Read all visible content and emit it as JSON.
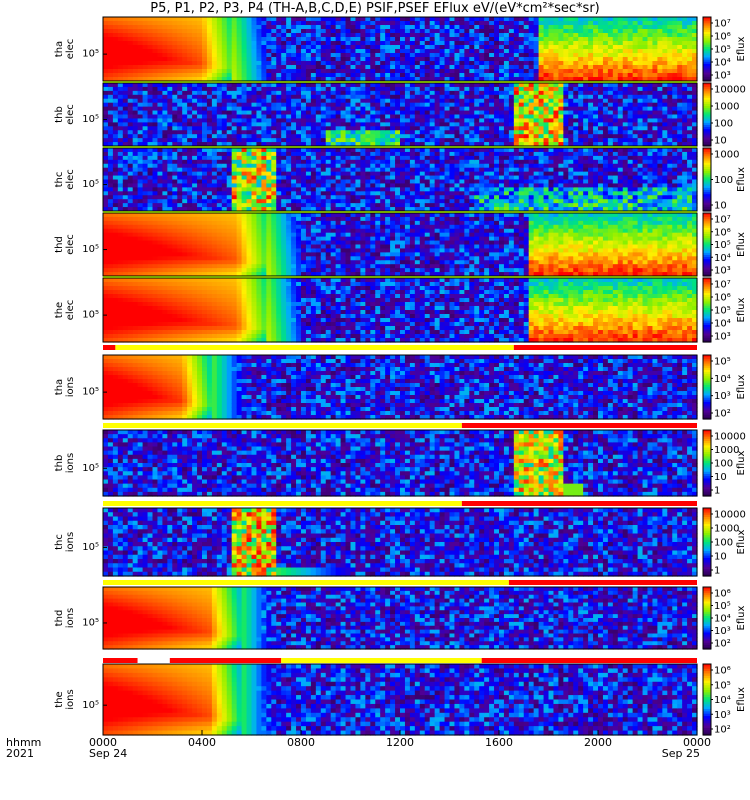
{
  "title": "P5, P1, P2, P3, P4 (TH-A,B,C,D,E) PSIF,PSEF EFlux eV/(eV*cm²*sec*sr)",
  "x_axis": {
    "row1_label": "hhmm",
    "row2_label": "2021",
    "ticks": [
      "0000",
      "0400",
      "0800",
      "1200",
      "1600",
      "2000",
      "0000"
    ],
    "date_start": "Sep 24",
    "date_end": "Sep 25"
  },
  "chart_data": {
    "type": "heatmap",
    "x_unit": "hours (UT)",
    "xlim": [
      0,
      24
    ],
    "panels": [
      {
        "probe": "tha",
        "species": "elec",
        "ylabel": [
          "tha",
          "elec"
        ],
        "ytick": "10⁵",
        "cbar": {
          "label": "Eflux",
          "ticks": [
            "10⁷",
            "10⁶",
            "10⁵",
            "10⁴",
            "10³"
          ],
          "log_range": [
            2.7,
            7
          ]
        }
      },
      {
        "probe": "thb",
        "species": "elec",
        "ylabel": [
          "thb",
          "elec"
        ],
        "ytick": "10⁵",
        "cbar": {
          "label": "",
          "ticks": [
            "10000",
            "1000",
            "100",
            "10"
          ],
          "log_range": [
            0.5,
            4.5
          ]
        }
      },
      {
        "probe": "thc",
        "species": "elec",
        "ylabel": [
          "thc",
          "elec"
        ],
        "ytick": "10⁵",
        "cbar": {
          "label": "Eflux",
          "ticks": [
            "1000",
            "100",
            "10"
          ],
          "log_range": [
            0.6,
            3.5
          ]
        }
      },
      {
        "probe": "thd",
        "species": "elec",
        "ylabel": [
          "thd",
          "elec"
        ],
        "ytick": "10⁵",
        "cbar": {
          "label": "Eflux",
          "ticks": [
            "10⁷",
            "10⁶",
            "10⁵",
            "10⁴",
            "10³"
          ],
          "log_range": [
            2.7,
            7
          ]
        }
      },
      {
        "probe": "the",
        "species": "elec",
        "ylabel": [
          "the",
          "elec"
        ],
        "ytick": "10⁵",
        "cbar": {
          "label": "Eflux",
          "ticks": [
            "10⁷",
            "10⁶",
            "10⁵",
            "10⁴",
            "10³"
          ],
          "log_range": [
            2.7,
            7
          ]
        }
      },
      {
        "probe": "tha",
        "species": "ions",
        "ylabel": [
          "tha",
          "ions"
        ],
        "ytick": "10⁵",
        "cbar": {
          "label": "Eflux",
          "ticks": [
            "10⁵",
            "10⁴",
            "10³",
            "10²"
          ],
          "log_range": [
            1.8,
            5.2
          ]
        }
      },
      {
        "probe": "thb",
        "species": "ions",
        "ylabel": [
          "thb",
          "ions"
        ],
        "ytick": "10⁵",
        "cbar": {
          "label": "Eflux",
          "ticks": [
            "10000",
            "1000",
            "100",
            "10",
            "1"
          ],
          "log_range": [
            0,
            4.5
          ]
        }
      },
      {
        "probe": "thc",
        "species": "ions",
        "ylabel": [
          "thc",
          "ions"
        ],
        "ytick": "10⁵",
        "cbar": {
          "label": "Eflux",
          "ticks": [
            "10000",
            "1000",
            "100",
            "10",
            "1"
          ],
          "log_range": [
            0,
            4.5
          ]
        }
      },
      {
        "probe": "thd",
        "species": "ions",
        "ylabel": [
          "thd",
          "ions"
        ],
        "ytick": "10⁵",
        "cbar": {
          "label": "Eflux",
          "ticks": [
            "10⁶",
            "10⁵",
            "10⁴",
            "10³",
            "10²"
          ],
          "log_range": [
            1.8,
            6.3
          ]
        }
      },
      {
        "probe": "the",
        "species": "ions",
        "ylabel": [
          "the",
          "ions"
        ],
        "ytick": "10⁵",
        "cbar": {
          "label": "Eflux",
          "ticks": [
            "10⁶",
            "10⁵",
            "10⁴",
            "10³",
            "10²"
          ],
          "log_range": [
            1.8,
            6.3
          ]
        }
      }
    ],
    "mode_bars": [
      {
        "segments": [
          [
            "red",
            0,
            0.5
          ],
          [
            "yellow",
            0.5,
            16.6
          ],
          [
            "red",
            16.6,
            24
          ]
        ]
      },
      {
        "segments": [
          [
            "yellow",
            0,
            14.5
          ],
          [
            "red",
            14.5,
            24
          ]
        ]
      },
      {
        "segments": [
          [
            "yellow",
            0,
            14.5
          ],
          [
            "red",
            14.5,
            24
          ]
        ]
      },
      {
        "segments": [
          [
            "yellow",
            0,
            16.4
          ],
          [
            "red",
            16.4,
            24
          ]
        ]
      },
      {
        "segments": [
          [
            "red",
            0,
            1.4
          ],
          [
            "white",
            1.4,
            2.7
          ],
          [
            "red",
            2.7,
            7.2
          ],
          [
            "yellow",
            7.2,
            15.3
          ],
          [
            "red",
            15.3,
            24
          ]
        ]
      }
    ]
  }
}
